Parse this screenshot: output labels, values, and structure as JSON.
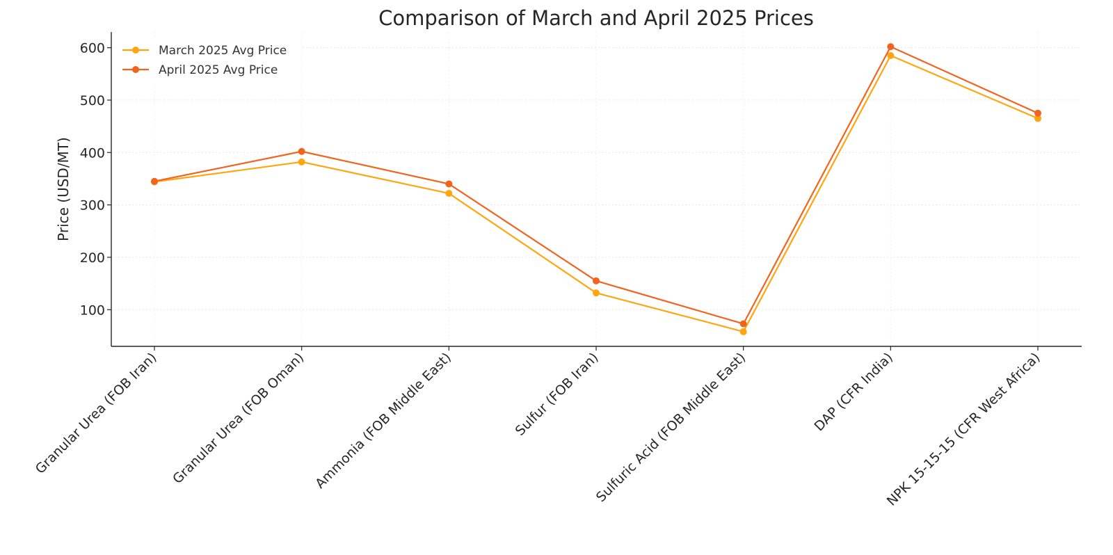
{
  "chart_data": {
    "type": "line",
    "title": "Comparison of March and April 2025 Prices",
    "xlabel": "",
    "ylabel": "Price (USD/MT)",
    "categories": [
      "Granular Urea (FOB Iran)",
      "Granular Urea (FOB Oman)",
      "Ammonia (FOB Middle East)",
      "Sulfur (FOB Iran)",
      "Sulfuric Acid (FOB Middle East)",
      "DAP (CFR India)",
      "NPK 15-15-15 (CFR West Africa)"
    ],
    "series": [
      {
        "name": "March 2025 Avg Price",
        "color": "#FFA50E",
        "values": [
          344,
          382,
          322,
          132,
          58,
          585,
          465
        ]
      },
      {
        "name": "April 2025 Avg Price",
        "color": "#F0641E",
        "values": [
          345,
          402,
          340,
          155,
          73,
          602,
          475
        ]
      }
    ],
    "yticks": [
      100,
      200,
      300,
      400,
      500,
      600
    ],
    "ylim": [
      30,
      630
    ],
    "grid": true,
    "legend_position": "top-left"
  }
}
